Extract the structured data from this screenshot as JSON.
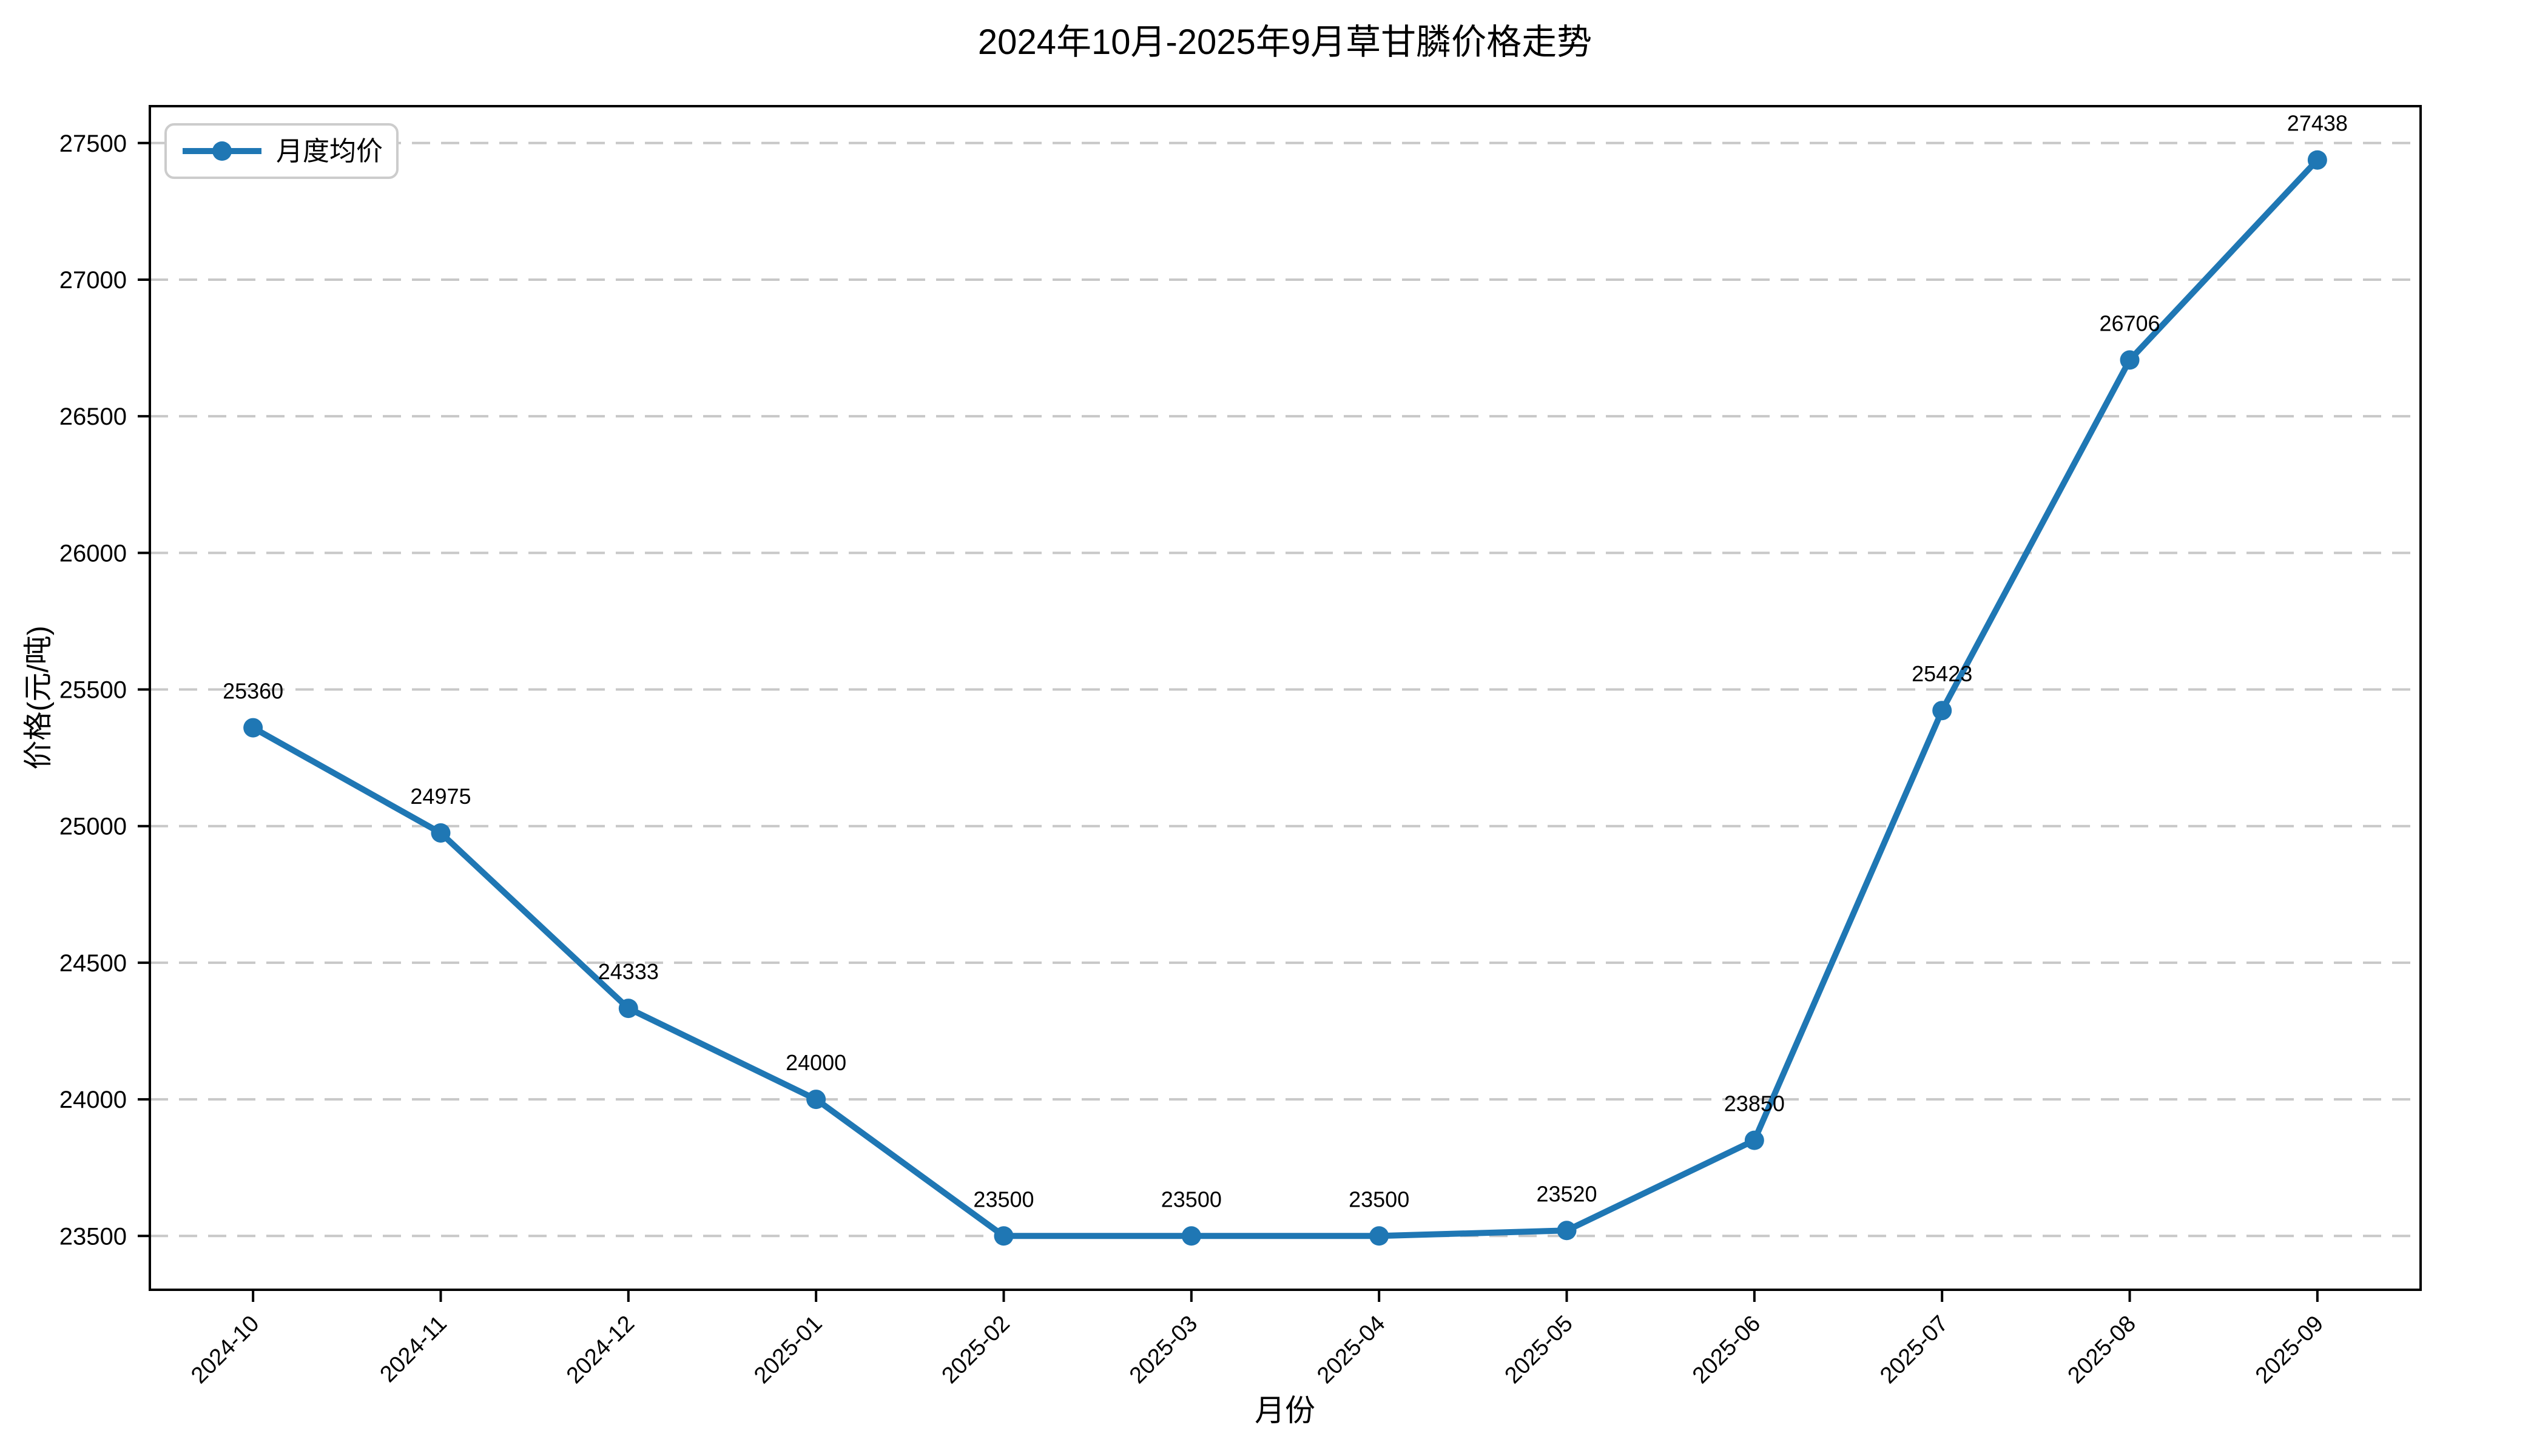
{
  "chart_data": {
    "type": "line",
    "title": "2024年10月-2025年9月草甘膦价格走势",
    "xlabel": "月份",
    "ylabel": "价格(元/吨)",
    "categories": [
      "2024-10",
      "2024-11",
      "2024-12",
      "2025-01",
      "2025-02",
      "2025-03",
      "2025-04",
      "2025-05",
      "2025-06",
      "2025-07",
      "2025-08",
      "2025-09"
    ],
    "series": [
      {
        "name": "月度均价",
        "color": "#1f77b4",
        "values": [
          25360,
          24975,
          24333,
          24000,
          23500,
          23500,
          23500,
          23520,
          23850,
          25423,
          26706,
          27438
        ]
      }
    ],
    "show_point_labels": true,
    "yticks": [
      23500,
      24000,
      24500,
      25000,
      25500,
      26000,
      26500,
      27000,
      27500
    ],
    "ylim": [
      23303,
      27635
    ],
    "grid": "horizontal-dashed",
    "grid_color": "#c8c8c8",
    "axis_color": "#000000",
    "text_color": "#000000",
    "background": "#ffffff",
    "legend": {
      "position": "upper-left",
      "label": "月度均价"
    }
  }
}
